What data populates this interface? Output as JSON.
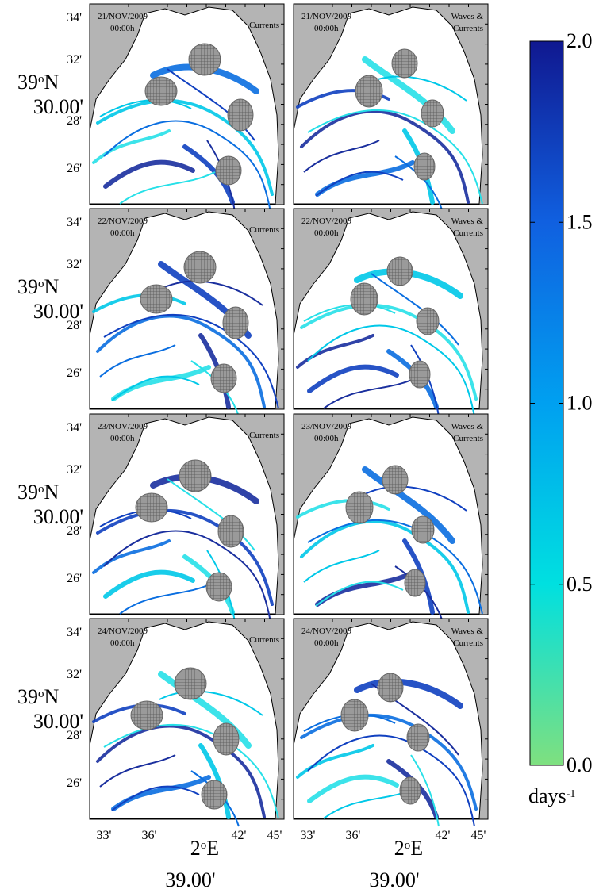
{
  "panels": [
    {
      "date": "21/NOV/2009",
      "time": "00:00h",
      "label": [
        "Currents"
      ]
    },
    {
      "date": "21/NOV/2009",
      "time": "00:00h",
      "label": [
        "Waves &",
        "Currents"
      ]
    },
    {
      "date": "22/NOV/2009",
      "time": "00:00h",
      "label": [
        "Currents"
      ]
    },
    {
      "date": "22/NOV/2009",
      "time": "00:00h",
      "label": [
        "Waves &",
        "Currents"
      ]
    },
    {
      "date": "23/NOV/2009",
      "time": "00:00h",
      "label": [
        "Currents"
      ]
    },
    {
      "date": "23/NOV/2009",
      "time": "00:00h",
      "label": [
        "Waves &",
        "Currents"
      ]
    },
    {
      "date": "24/NOV/2009",
      "time": "00:00h",
      "label": [
        "Currents"
      ]
    },
    {
      "date": "24/NOV/2009",
      "time": "00:00h",
      "label": [
        "Waves &",
        "Currents"
      ]
    }
  ],
  "y_axis": {
    "ticks": [
      "34'",
      "32'",
      "28'",
      "26'"
    ],
    "center": {
      "deg": "39",
      "sup": "o",
      "hemi": "N"
    },
    "center_minutes": "30.00'"
  },
  "x_axis": {
    "ticks": [
      "33'",
      "36'",
      "42'",
      "45'"
    ],
    "center": {
      "deg": "2",
      "sup": "o",
      "hemi": "E"
    },
    "center_minutes": "39.00'"
  },
  "colorbar": {
    "lim": [
      0,
      2
    ],
    "ticks": [
      {
        "value": 2,
        "label": "2.0"
      },
      {
        "value": 1.5,
        "label": "1.5"
      },
      {
        "value": 1,
        "label": "1.0"
      },
      {
        "value": 0.5,
        "label": "0.5"
      },
      {
        "value": 0,
        "label": "0.0"
      }
    ],
    "colors": [
      "#7fe07f",
      "#00e0e0",
      "#00a0f0",
      "#1060e0",
      "#101890"
    ],
    "unit": "days",
    "unit_sup": "-1"
  }
}
